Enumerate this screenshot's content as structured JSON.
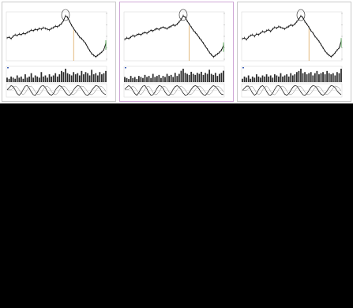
{
  "theme": {
    "background": "#000000",
    "panel_bg": "#ffffff",
    "panel_border": "#c9c9c9",
    "selected_border": "#cfa7d6",
    "price_color": "#111111",
    "accent_green": "#3a9a3a",
    "accent_orange": "#d08b2a",
    "accent_blue": "#3d5fb8",
    "oscillator_color": "#222222"
  },
  "panels": [
    {
      "title": "",
      "subtitle": "",
      "corner_label": "",
      "x_ticks": [
        "",
        "",
        ""
      ],
      "y_ticks": [
        "",
        "",
        "",
        "",
        ""
      ],
      "chart_data": {
        "type": "line",
        "price": [
          62,
          63,
          61,
          64,
          66,
          65,
          67,
          66,
          68,
          67,
          69,
          70,
          72,
          71,
          73,
          72,
          74,
          73,
          75,
          74,
          73,
          72,
          74,
          75,
          77,
          76,
          78,
          80,
          84,
          90,
          88,
          83,
          78,
          74,
          70,
          67,
          63,
          61,
          58,
          55,
          50,
          46,
          42,
          40,
          38,
          40,
          42,
          44,
          47,
          55
        ],
        "volume": [
          4,
          3,
          5,
          4,
          3,
          6,
          4,
          5,
          3,
          7,
          4,
          5,
          8,
          4,
          6,
          5,
          4,
          9,
          5,
          6,
          4,
          7,
          5,
          6,
          8,
          5,
          7,
          10,
          9,
          12,
          8,
          7,
          6,
          9,
          7,
          8,
          6,
          10,
          7,
          9,
          8,
          6,
          11,
          7,
          8,
          6,
          9,
          7,
          8,
          10
        ],
        "oscillator": [
          0.1,
          0.5,
          0.9,
          0.7,
          0.1,
          -0.6,
          -0.9,
          -0.5,
          0.2,
          0.8,
          0.9,
          0.4,
          -0.3,
          -0.8,
          -0.9,
          -0.4,
          0.3,
          0.8,
          0.9,
          0.5,
          -0.2,
          -0.7,
          -0.9,
          -0.6,
          0.1,
          0.6,
          0.9,
          0.7,
          0.2,
          -0.4,
          -0.8,
          -0.9,
          -0.5,
          0.1,
          0.6,
          0.9,
          0.8,
          0.3,
          -0.3,
          -0.8,
          -0.9,
          -0.6,
          0.0,
          0.5,
          0.9,
          0.8,
          0.4,
          -0.2,
          -0.6,
          -0.8
        ],
        "highlight_index": 29,
        "marker_index": 33
      }
    },
    {
      "title": "",
      "subtitle": "",
      "corner_label": "",
      "x_ticks": [
        "",
        "",
        ""
      ],
      "y_ticks": [
        "",
        "",
        "",
        "",
        ""
      ],
      "chart_data": {
        "type": "line",
        "price": [
          60,
          62,
          61,
          63,
          65,
          64,
          66,
          67,
          66,
          68,
          69,
          68,
          70,
          72,
          71,
          73,
          74,
          73,
          75,
          76,
          75,
          74,
          76,
          77,
          79,
          78,
          80,
          83,
          86,
          91,
          89,
          84,
          80,
          76,
          72,
          69,
          66,
          62,
          59,
          55,
          51,
          47,
          43,
          40,
          37,
          39,
          41,
          43,
          46,
          52
        ],
        "volume": [
          5,
          4,
          3,
          6,
          4,
          5,
          3,
          6,
          5,
          4,
          7,
          5,
          6,
          4,
          8,
          5,
          6,
          7,
          4,
          6,
          5,
          8,
          6,
          7,
          5,
          9,
          6,
          8,
          11,
          13,
          9,
          8,
          7,
          10,
          8,
          7,
          9,
          8,
          10,
          7,
          9,
          8,
          12,
          8,
          7,
          9,
          6,
          8,
          9,
          11
        ],
        "oscillator": [
          0.2,
          0.6,
          0.9,
          0.6,
          0.0,
          -0.6,
          -0.9,
          -0.4,
          0.3,
          0.8,
          0.9,
          0.3,
          -0.4,
          -0.9,
          -0.8,
          -0.3,
          0.4,
          0.9,
          0.8,
          0.4,
          -0.3,
          -0.8,
          -0.9,
          -0.5,
          0.2,
          0.7,
          0.9,
          0.6,
          0.1,
          -0.5,
          -0.9,
          -0.8,
          -0.4,
          0.2,
          0.7,
          0.9,
          0.7,
          0.2,
          -0.4,
          -0.8,
          -0.9,
          -0.5,
          0.1,
          0.6,
          0.9,
          0.7,
          0.3,
          -0.3,
          -0.7,
          -0.8
        ],
        "highlight_index": 29,
        "marker_index": 32
      }
    },
    {
      "title": "",
      "subtitle": "",
      "corner_label": "",
      "x_ticks": [
        "",
        "",
        ""
      ],
      "y_ticks": [
        "",
        "",
        "",
        "",
        ""
      ],
      "chart_data": {
        "type": "line",
        "price": [
          61,
          62,
          60,
          63,
          65,
          66,
          64,
          67,
          66,
          68,
          70,
          69,
          71,
          72,
          70,
          73,
          75,
          74,
          76,
          75,
          74,
          73,
          75,
          76,
          78,
          77,
          79,
          82,
          85,
          89,
          87,
          82,
          79,
          75,
          71,
          68,
          64,
          61,
          58,
          54,
          50,
          46,
          43,
          41,
          39,
          41,
          44,
          47,
          50,
          58
        ],
        "volume": [
          3,
          5,
          4,
          6,
          3,
          5,
          4,
          7,
          5,
          4,
          6,
          5,
          7,
          5,
          6,
          4,
          7,
          6,
          5,
          8,
          5,
          6,
          7,
          5,
          8,
          6,
          7,
          9,
          10,
          12,
          8,
          9,
          7,
          8,
          9,
          6,
          8,
          10,
          7,
          8,
          9,
          7,
          10,
          8,
          7,
          8,
          6,
          9,
          8,
          12
        ],
        "oscillator": [
          0.0,
          0.4,
          0.8,
          0.8,
          0.2,
          -0.5,
          -0.9,
          -0.6,
          0.1,
          0.7,
          0.9,
          0.5,
          -0.2,
          -0.8,
          -0.9,
          -0.5,
          0.2,
          0.8,
          0.9,
          0.6,
          -0.1,
          -0.7,
          -0.9,
          -0.6,
          0.0,
          0.6,
          0.9,
          0.8,
          0.3,
          -0.3,
          -0.8,
          -0.9,
          -0.6,
          0.0,
          0.6,
          0.9,
          0.8,
          0.4,
          -0.2,
          -0.7,
          -0.9,
          -0.6,
          -0.1,
          0.5,
          0.9,
          0.8,
          0.5,
          -0.1,
          -0.5,
          -0.8
        ],
        "highlight_index": 29,
        "marker_index": 33
      }
    }
  ]
}
